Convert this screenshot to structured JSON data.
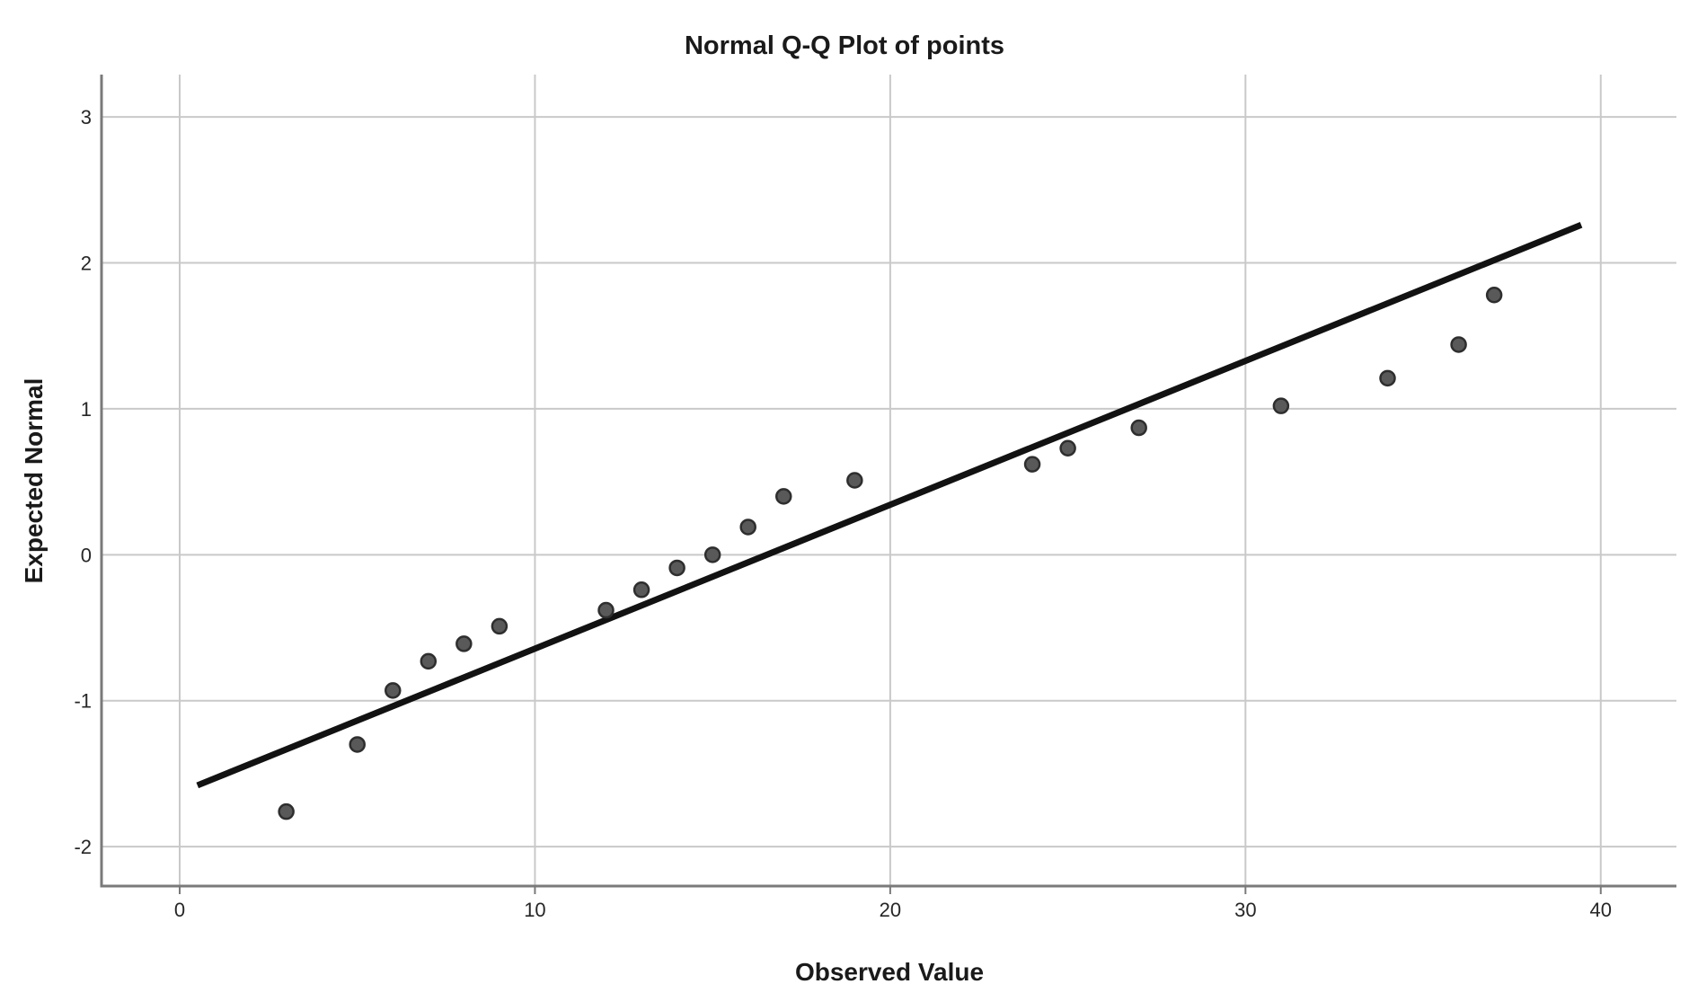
{
  "chart_data": {
    "type": "scatter",
    "subtype": "normal-qq-plot",
    "title": "Normal Q-Q Plot of points",
    "xlabel": "Observed Value",
    "ylabel": "Expected Normal",
    "xlim": [
      -2.2,
      42.13
    ],
    "ylim": [
      -2.27,
      3.29
    ],
    "x_ticks": [
      0,
      10,
      20,
      30,
      40
    ],
    "y_ticks": [
      -2,
      -1,
      0,
      1,
      2,
      3
    ],
    "grid": true,
    "legend_position": "none",
    "points": [
      {
        "x": 3,
        "y": -1.76
      },
      {
        "x": 5,
        "y": -1.3
      },
      {
        "x": 6,
        "y": -0.93
      },
      {
        "x": 7,
        "y": -0.73
      },
      {
        "x": 8,
        "y": -0.61
      },
      {
        "x": 9,
        "y": -0.49
      },
      {
        "x": 12,
        "y": -0.38
      },
      {
        "x": 13,
        "y": -0.24
      },
      {
        "x": 14,
        "y": -0.09
      },
      {
        "x": 15,
        "y": 0.0
      },
      {
        "x": 16,
        "y": 0.19
      },
      {
        "x": 17,
        "y": 0.4
      },
      {
        "x": 19,
        "y": 0.51
      },
      {
        "x": 24,
        "y": 0.62
      },
      {
        "x": 25,
        "y": 0.73
      },
      {
        "x": 27,
        "y": 0.87
      },
      {
        "x": 31,
        "y": 1.02
      },
      {
        "x": 34,
        "y": 1.21
      },
      {
        "x": 36,
        "y": 1.44
      },
      {
        "x": 37,
        "y": 1.78
      }
    ],
    "trend_line": {
      "x1": 0.5,
      "y1": -1.58,
      "x2": 39.45,
      "y2": 2.26
    },
    "marker_radius": 8,
    "colors": {
      "background": "#ffffff",
      "grid": "#c9c9c9",
      "axis": "#7a7a7a",
      "trend_line": "#121212",
      "point_fill": "#595959",
      "point_stroke": "#2e2e2e",
      "title_text": "#1a1a1a",
      "tick_text": "#262626"
    }
  }
}
